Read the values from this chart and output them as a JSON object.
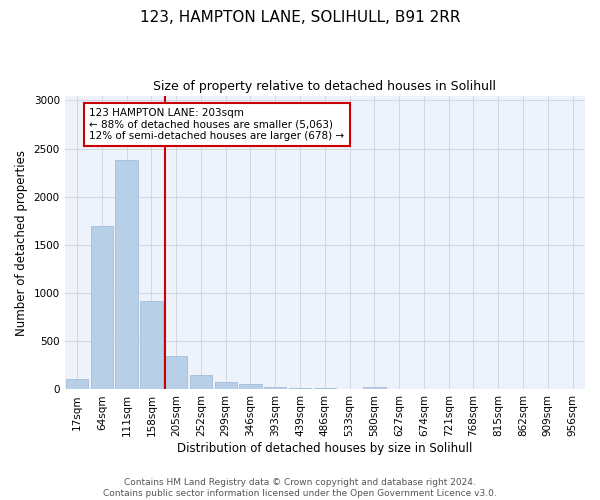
{
  "title": "123, HAMPTON LANE, SOLIHULL, B91 2RR",
  "subtitle": "Size of property relative to detached houses in Solihull",
  "xlabel": "Distribution of detached houses by size in Solihull",
  "ylabel": "Number of detached properties",
  "bar_labels": [
    "17sqm",
    "64sqm",
    "111sqm",
    "158sqm",
    "205sqm",
    "252sqm",
    "299sqm",
    "346sqm",
    "393sqm",
    "439sqm",
    "486sqm",
    "533sqm",
    "580sqm",
    "627sqm",
    "674sqm",
    "721sqm",
    "768sqm",
    "815sqm",
    "862sqm",
    "909sqm",
    "956sqm"
  ],
  "bar_values": [
    110,
    1700,
    2380,
    920,
    345,
    155,
    80,
    55,
    30,
    15,
    10,
    8,
    25,
    5,
    5,
    3,
    2,
    2,
    2,
    2,
    2
  ],
  "bar_color": "#b8cfe8",
  "bar_edge_color": "#9ab5d8",
  "vline_index": 4,
  "vline_color": "#cc0000",
  "annotation_line1": "123 HAMPTON LANE: 203sqm",
  "annotation_line2": "← 88% of detached houses are smaller (5,063)",
  "annotation_line3": "12% of semi-detached houses are larger (678) →",
  "annotation_box_color": "white",
  "annotation_box_edgecolor": "#cc0000",
  "ylim": [
    0,
    3050
  ],
  "yticks": [
    0,
    500,
    1000,
    1500,
    2000,
    2500,
    3000
  ],
  "background_color": "#eef2fb",
  "grid_color": "#d0d8e8",
  "footer_text": "Contains HM Land Registry data © Crown copyright and database right 2024.\nContains public sector information licensed under the Open Government Licence v3.0.",
  "title_fontsize": 11,
  "subtitle_fontsize": 9,
  "xlabel_fontsize": 8.5,
  "ylabel_fontsize": 8.5,
  "tick_fontsize": 7.5,
  "annotation_fontsize": 7.5,
  "footer_fontsize": 6.5
}
